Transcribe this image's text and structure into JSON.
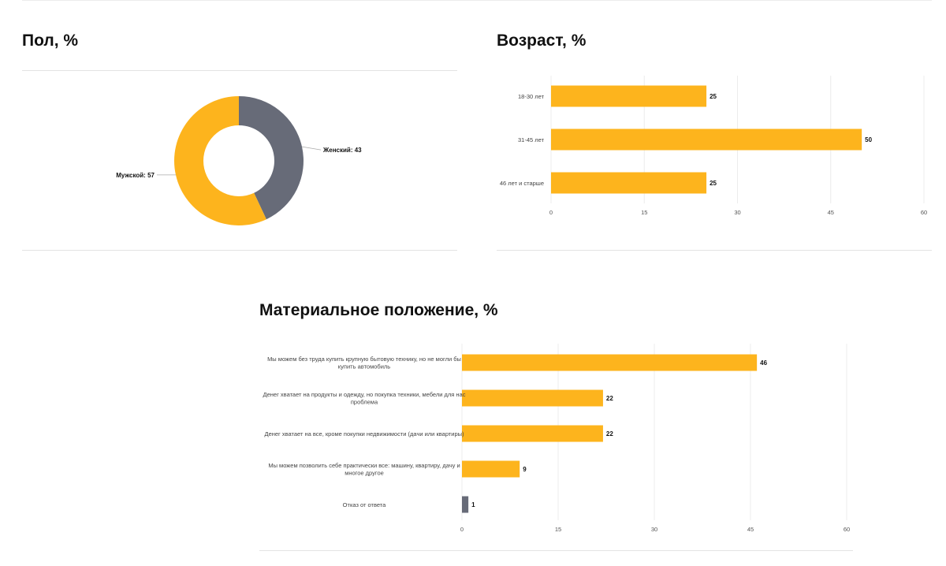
{
  "colors": {
    "primary": "#FDB41D",
    "secondary": "#676B78",
    "grid": "#ececec"
  },
  "gender": {
    "title": "Пол, %",
    "chart_data": {
      "type": "pie",
      "title": "Пол, %",
      "donut": true,
      "slices": [
        {
          "label": "Женский",
          "value": 43,
          "display": "Женский: 43",
          "color": "#676B78"
        },
        {
          "label": "Мужской",
          "value": 57,
          "display": "Мужской: 57",
          "color": "#FDB41D"
        }
      ]
    }
  },
  "age": {
    "title": "Возраст, %",
    "chart_data": {
      "type": "bar",
      "orientation": "horizontal",
      "title": "Возраст, %",
      "categories": [
        "18-30 лет",
        "31-45 лет",
        "46 лет и старше"
      ],
      "values": [
        25,
        50,
        25
      ],
      "value_labels": [
        "25",
        "50",
        "25"
      ],
      "colors": [
        "#FDB41D",
        "#FDB41D",
        "#FDB41D"
      ],
      "xlim": [
        0,
        60
      ],
      "xticks": [
        0,
        15,
        30,
        45,
        60
      ],
      "xtick_labels": [
        "0",
        "15",
        "30",
        "45",
        "60"
      ],
      "grid": true
    }
  },
  "wealth": {
    "title": "Материальное положение, %",
    "chart_data": {
      "type": "bar",
      "orientation": "horizontal",
      "title": "Материальное положение, %",
      "categories": [
        [
          "Мы можем без труда купить крупную бытовую технику, но не могли бы",
          "купить автомобиль"
        ],
        [
          "Денег хватает на продукты и одежду, но покупка техники, мебели для нас",
          "проблема"
        ],
        [
          "Денег хватает на все, кроме покупки недвижимости (дачи или квартиры)"
        ],
        [
          "Мы можем позволить себе практически все: машину, квартиру, дачу и",
          "многое другое"
        ],
        [
          "Отказ от ответа"
        ]
      ],
      "values": [
        46,
        22,
        22,
        9,
        1
      ],
      "value_labels": [
        "46",
        "22",
        "22",
        "9",
        "1"
      ],
      "colors": [
        "#FDB41D",
        "#FDB41D",
        "#FDB41D",
        "#FDB41D",
        "#676B78"
      ],
      "xlim": [
        0,
        60
      ],
      "xticks": [
        0,
        15,
        30,
        45,
        60
      ],
      "xtick_labels": [
        "0",
        "15",
        "30",
        "45",
        "60"
      ],
      "grid": true
    }
  }
}
